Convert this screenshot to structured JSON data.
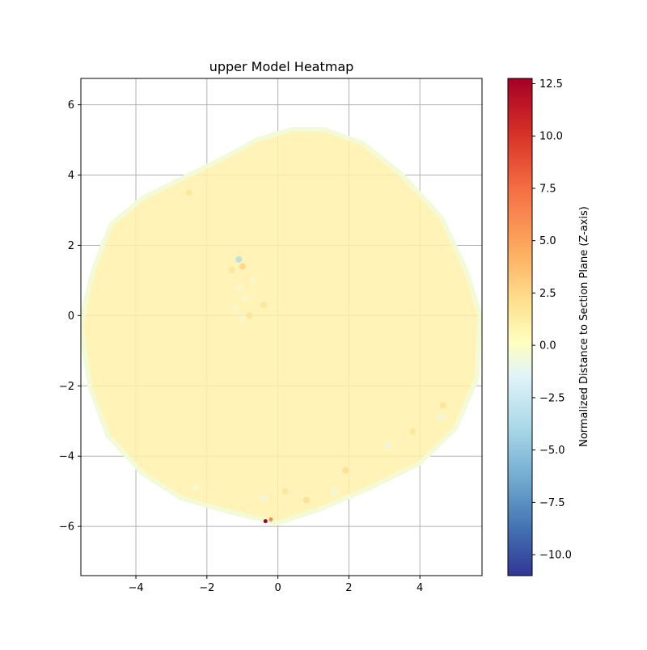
{
  "chart_data": {
    "type": "heatmap",
    "title": "upper Model Heatmap",
    "xlabel": "",
    "ylabel": "",
    "xlim": [
      -5.55,
      5.75
    ],
    "ylim": [
      -7.4,
      6.75
    ],
    "xticks": [
      -4,
      -2,
      0,
      2,
      4
    ],
    "yticks": [
      -6,
      -4,
      -2,
      0,
      2,
      4,
      6
    ],
    "xtick_labels": [
      "−4",
      "−2",
      "0",
      "2",
      "4"
    ],
    "ytick_labels": [
      "−6",
      "−4",
      "−2",
      "0",
      "2",
      "4",
      "6"
    ],
    "grid": true,
    "colorbar": {
      "label": "Normalized Distance to Section Plane (Z-axis)",
      "range": [
        -11.0,
        12.75
      ],
      "colormap": "RdYlBu_r",
      "ticks": [
        -10.0,
        -7.5,
        -5.0,
        -2.5,
        0.0,
        2.5,
        5.0,
        7.5,
        10.0,
        12.5
      ],
      "tick_labels": [
        "−10.0",
        "−7.5",
        "−5.0",
        "−2.5",
        "0.0",
        "2.5",
        "5.0",
        "7.5",
        "10.0",
        "12.5"
      ]
    },
    "region": {
      "description_value": 1.0,
      "outline": [
        [
          -5.4,
          0.5
        ],
        [
          -5.2,
          1.3
        ],
        [
          -4.7,
          2.6
        ],
        [
          -3.8,
          3.35
        ],
        [
          -2.5,
          4.0
        ],
        [
          -1.5,
          4.5
        ],
        [
          -0.6,
          5.0
        ],
        [
          0.4,
          5.3
        ],
        [
          1.3,
          5.3
        ],
        [
          2.4,
          4.9
        ],
        [
          3.5,
          4.0
        ],
        [
          4.6,
          2.8
        ],
        [
          5.3,
          1.3
        ],
        [
          5.7,
          0.0
        ],
        [
          5.6,
          -1.8
        ],
        [
          5.0,
          -3.2
        ],
        [
          4.0,
          -4.2
        ],
        [
          2.6,
          -4.9
        ],
        [
          1.2,
          -5.5
        ],
        [
          0.0,
          -5.9
        ],
        [
          -1.3,
          -5.6
        ],
        [
          -2.7,
          -5.2
        ],
        [
          -3.8,
          -4.5
        ],
        [
          -4.8,
          -3.4
        ],
        [
          -5.3,
          -2.0
        ],
        [
          -5.55,
          -0.3
        ]
      ],
      "hotspots": [
        {
          "x": -0.35,
          "y": -5.85,
          "value": 12.7
        },
        {
          "x": -0.2,
          "y": -5.8,
          "value": 6.0
        },
        {
          "x": -1.1,
          "y": 1.6,
          "value": -4.0
        },
        {
          "x": -1.0,
          "y": 1.4,
          "value": 3.0
        },
        {
          "x": -1.3,
          "y": 1.3,
          "value": 2.0
        },
        {
          "x": 1.9,
          "y": -4.4,
          "value": 2.5
        },
        {
          "x": 0.8,
          "y": -5.25,
          "value": 2.5
        },
        {
          "x": 4.65,
          "y": -2.55,
          "value": 2.0
        },
        {
          "x": -2.5,
          "y": 3.5,
          "value": 2.0
        },
        {
          "x": -0.8,
          "y": 0.0,
          "value": 2.0
        },
        {
          "x": -0.4,
          "y": 0.3,
          "value": 2.0
        },
        {
          "x": 0.2,
          "y": -5.0,
          "value": 2.0
        },
        {
          "x": 3.8,
          "y": -3.3,
          "value": 2.0
        },
        {
          "x": -1.1,
          "y": 0.8,
          "value": -0.5
        },
        {
          "x": -0.9,
          "y": 0.5,
          "value": -0.5
        },
        {
          "x": -1.2,
          "y": 0.2,
          "value": -0.5
        },
        {
          "x": -0.7,
          "y": 1.0,
          "value": -0.5
        },
        {
          "x": -1.0,
          "y": -0.1,
          "value": -0.5
        },
        {
          "x": 3.1,
          "y": -3.7,
          "value": -1.0
        },
        {
          "x": 4.6,
          "y": -2.9,
          "value": -1.0
        },
        {
          "x": 1.6,
          "y": -5.0,
          "value": -1.0
        },
        {
          "x": -0.4,
          "y": -5.2,
          "value": -1.0
        },
        {
          "x": -2.3,
          "y": -4.9,
          "value": -0.5
        }
      ]
    }
  }
}
